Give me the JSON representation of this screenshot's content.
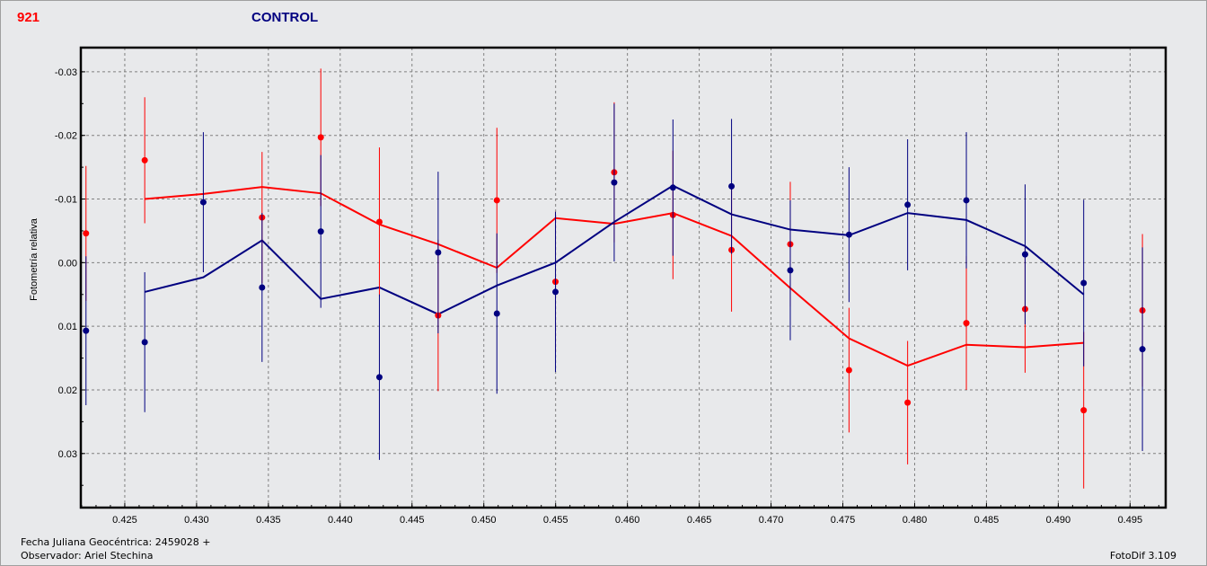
{
  "header": {
    "star_id": "921",
    "title": "CONTROL",
    "star_color": "#ff0000",
    "title_color": "#000080"
  },
  "footer": {
    "date_label": "Fecha Juliana Geocéntrica: 2459028 +",
    "observer_label": "Observador: Ariel Stechina",
    "software": "FotoDif 3.109"
  },
  "chart_data": {
    "type": "scatter",
    "title": "CONTROL",
    "xlabel": "",
    "ylabel": "Fotometría relativa",
    "xlim": [
      0.42194,
      0.49748
    ],
    "ylim": [
      -0.0338,
      0.0385
    ],
    "y_inverted": true,
    "grid": true,
    "x_ticks": [
      "0.425",
      "0.430",
      "0.435",
      "0.440",
      "0.445",
      "0.450",
      "0.455",
      "0.460",
      "0.465",
      "0.470",
      "0.475",
      "0.480",
      "0.485",
      "0.490",
      "0.495"
    ],
    "y_ticks": [
      "-0.03",
      "-0.02",
      "-0.01",
      "0.00",
      "0.01",
      "0.02",
      "0.03"
    ],
    "x": [
      0.4223,
      0.42639,
      0.43047,
      0.43456,
      0.43865,
      0.44273,
      0.44682,
      0.45091,
      0.45499,
      0.45908,
      0.46317,
      0.46725,
      0.47134,
      0.47543,
      0.47951,
      0.4836,
      0.48769,
      0.49177,
      0.49586
    ],
    "series": [
      {
        "name": "red",
        "color": "#ff0000",
        "values": [
          -0.0046,
          -0.0161,
          null,
          -0.0071,
          -0.0197,
          -0.0064,
          0.0083,
          -0.0098,
          0.003,
          -0.0142,
          -0.0075,
          -0.002,
          -0.0029,
          0.0169,
          0.022,
          0.0095,
          0.0073,
          0.0232,
          0.0075
        ],
        "errors": [
          0.0106,
          0.0099,
          null,
          0.0103,
          0.0108,
          0.0117,
          0.0119,
          0.0114,
          0.011,
          0.011,
          0.0101,
          0.0097,
          0.0098,
          0.0098,
          0.0097,
          0.0105,
          0.01,
          0.0123,
          0.012
        ],
        "trend": [
          null,
          -0.01,
          -0.0108,
          -0.0119,
          -0.0109,
          -0.006,
          -0.0029,
          0.0008,
          -0.007,
          -0.0061,
          -0.0078,
          -0.0042,
          0.004,
          0.0119,
          0.0162,
          0.0129,
          0.0133,
          0.0126,
          null
        ]
      },
      {
        "name": "blue",
        "color": "#000080",
        "values": [
          0.0107,
          0.0125,
          -0.0095,
          0.0039,
          -0.0049,
          0.018,
          -0.0016,
          0.008,
          0.0046,
          -0.0126,
          -0.0118,
          -0.012,
          0.0012,
          -0.0044,
          -0.0091,
          -0.0098,
          -0.0013,
          0.0032,
          0.0136
        ],
        "errors": [
          0.0117,
          0.011,
          0.011,
          0.0117,
          0.012,
          0.013,
          0.0127,
          0.0126,
          0.0126,
          0.0124,
          0.0107,
          0.0106,
          0.011,
          0.0106,
          0.0103,
          0.0107,
          0.011,
          0.0131,
          0.016
        ],
        "trend": [
          null,
          0.0046,
          0.0023,
          -0.0035,
          0.0057,
          0.0039,
          0.0081,
          0.0036,
          0.0,
          -0.0064,
          -0.0121,
          -0.0076,
          -0.0052,
          -0.0043,
          -0.0078,
          -0.0067,
          -0.0026,
          0.005,
          null
        ]
      }
    ]
  }
}
